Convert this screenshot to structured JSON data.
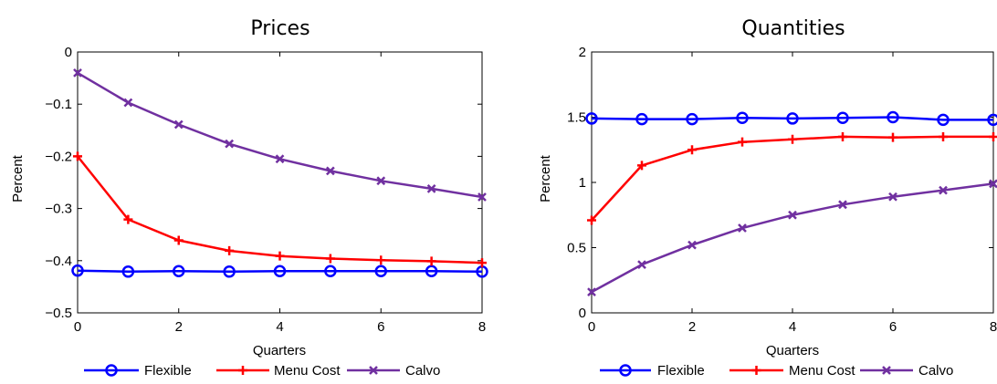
{
  "chart_data": [
    {
      "type": "line",
      "title": "Prices",
      "xlabel": "Quarters",
      "ylabel": "Percent",
      "xlim": [
        0,
        8
      ],
      "ylim": [
        -0.5,
        0
      ],
      "x_ticks": [
        0,
        2,
        4,
        6,
        8
      ],
      "y_ticks": [
        -0.5,
        -0.4,
        -0.3,
        -0.2,
        -0.1,
        0
      ],
      "x_tick_labels": [
        "0",
        "2",
        "4",
        "6",
        "8"
      ],
      "y_tick_labels": [
        "−0.5",
        "−0.4",
        "−0.3",
        "−0.2",
        "−0.1",
        "0"
      ],
      "grid": false,
      "legend_position": "bottom",
      "x": [
        0,
        1,
        2,
        3,
        4,
        5,
        6,
        7,
        8
      ],
      "series": [
        {
          "name": "Flexible",
          "color": "#0000ff",
          "marker": "circle",
          "values": [
            -0.419,
            -0.421,
            -0.42,
            -0.421,
            -0.42,
            -0.42,
            -0.42,
            -0.42,
            -0.421
          ]
        },
        {
          "name": "Menu Cost",
          "color": "#ff0000",
          "marker": "plus",
          "values": [
            -0.2,
            -0.321,
            -0.361,
            -0.381,
            -0.391,
            -0.396,
            -0.399,
            -0.401,
            -0.404
          ]
        },
        {
          "name": "Calvo",
          "color": "#7030a0",
          "marker": "x",
          "values": [
            -0.04,
            -0.097,
            -0.139,
            -0.176,
            -0.205,
            -0.228,
            -0.247,
            -0.262,
            -0.278
          ]
        }
      ]
    },
    {
      "type": "line",
      "title": "Quantities",
      "xlabel": "Quarters",
      "ylabel": "Percent",
      "xlim": [
        0,
        8
      ],
      "ylim": [
        0,
        2
      ],
      "x_ticks": [
        0,
        2,
        4,
        6,
        8
      ],
      "y_ticks": [
        0,
        0.5,
        1,
        1.5,
        2
      ],
      "x_tick_labels": [
        "0",
        "2",
        "4",
        "6",
        "8"
      ],
      "y_tick_labels": [
        "0",
        "0.5",
        "1",
        "1.5",
        "2"
      ],
      "grid": false,
      "legend_position": "bottom",
      "x": [
        0,
        1,
        2,
        3,
        4,
        5,
        6,
        7,
        8
      ],
      "series": [
        {
          "name": "Flexible",
          "color": "#0000ff",
          "marker": "circle",
          "values": [
            1.49,
            1.485,
            1.485,
            1.495,
            1.49,
            1.495,
            1.5,
            1.48,
            1.48
          ]
        },
        {
          "name": "Menu Cost",
          "color": "#ff0000",
          "marker": "plus",
          "values": [
            0.71,
            1.13,
            1.25,
            1.31,
            1.33,
            1.35,
            1.345,
            1.35,
            1.35
          ]
        },
        {
          "name": "Calvo",
          "color": "#7030a0",
          "marker": "x",
          "values": [
            0.16,
            0.37,
            0.52,
            0.65,
            0.75,
            0.83,
            0.89,
            0.94,
            0.99
          ]
        }
      ]
    }
  ]
}
